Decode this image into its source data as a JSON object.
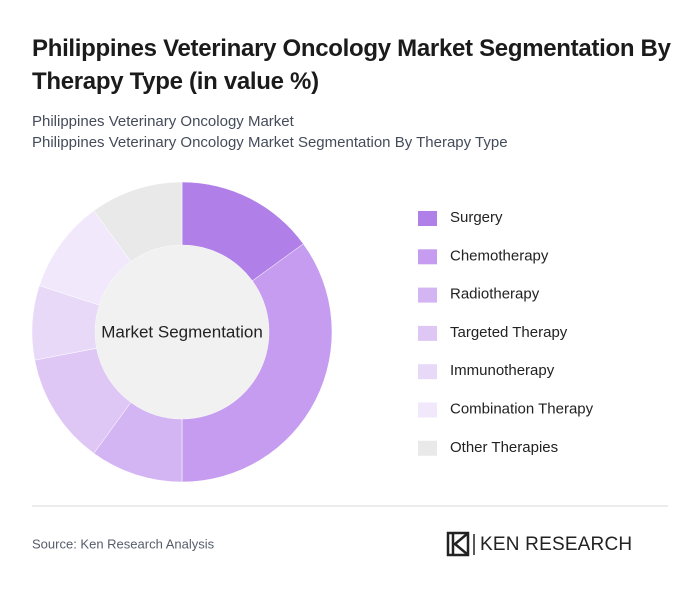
{
  "chart_data": {
    "type": "donut",
    "title": "Philippines Veterinary Oncology Market Segmentation By Therapy Type (in value %)",
    "subtitle": [
      "Philippines Veterinary Oncology Market",
      "Philippines Veterinary Oncology Market Segmentation By Therapy Type"
    ],
    "center_label": "Market Segmentation",
    "categories": [
      "Surgery",
      "Chemotherapy",
      "Radiotherapy",
      "Targeted Therapy",
      "Immunotherapy",
      "Combination Therapy",
      "Other Therapies"
    ],
    "values": [
      15,
      35,
      10,
      12,
      8,
      10,
      10
    ],
    "colors": [
      "#b07fe8",
      "#c59cef",
      "#d4b5f3",
      "#dfc7f5",
      "#e8d9f9",
      "#f1e9fb",
      "#e9e9e9"
    ]
  },
  "source": "Source: Ken Research Analysis",
  "logo": "KEN RESEARCH"
}
